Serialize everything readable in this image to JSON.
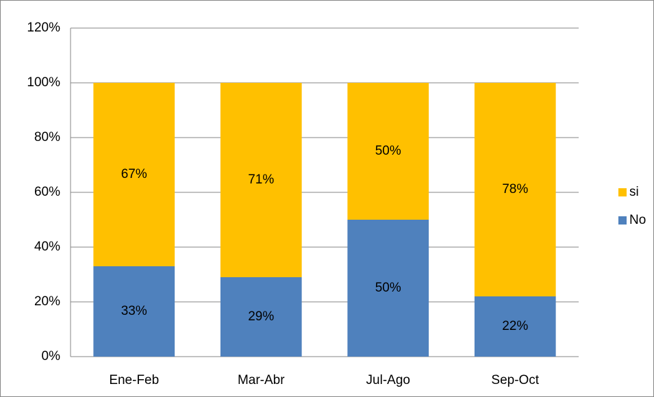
{
  "chart_data": {
    "type": "bar",
    "stacked": true,
    "categories": [
      "Ene-Feb",
      "Mar-Abr",
      "Jul-Ago",
      "Sep-Oct"
    ],
    "series": [
      {
        "name": "No",
        "color": "#4f81bd",
        "values": [
          33,
          29,
          50,
          22
        ],
        "value_labels": [
          "33%",
          "29%",
          "50%",
          "22%"
        ]
      },
      {
        "name": "si",
        "color": "#ffc000",
        "values": [
          67,
          71,
          50,
          78
        ],
        "value_labels": [
          "67%",
          "71%",
          "50%",
          "78%"
        ]
      }
    ],
    "ylim": [
      0,
      120
    ],
    "yticks": [
      {
        "value": 0,
        "label": "0%"
      },
      {
        "value": 20,
        "label": "20%"
      },
      {
        "value": 40,
        "label": "40%"
      },
      {
        "value": 60,
        "label": "60%"
      },
      {
        "value": 80,
        "label": "80%"
      },
      {
        "value": 100,
        "label": "100%"
      },
      {
        "value": 120,
        "label": "120%"
      }
    ],
    "grid": true,
    "legend": "right"
  }
}
